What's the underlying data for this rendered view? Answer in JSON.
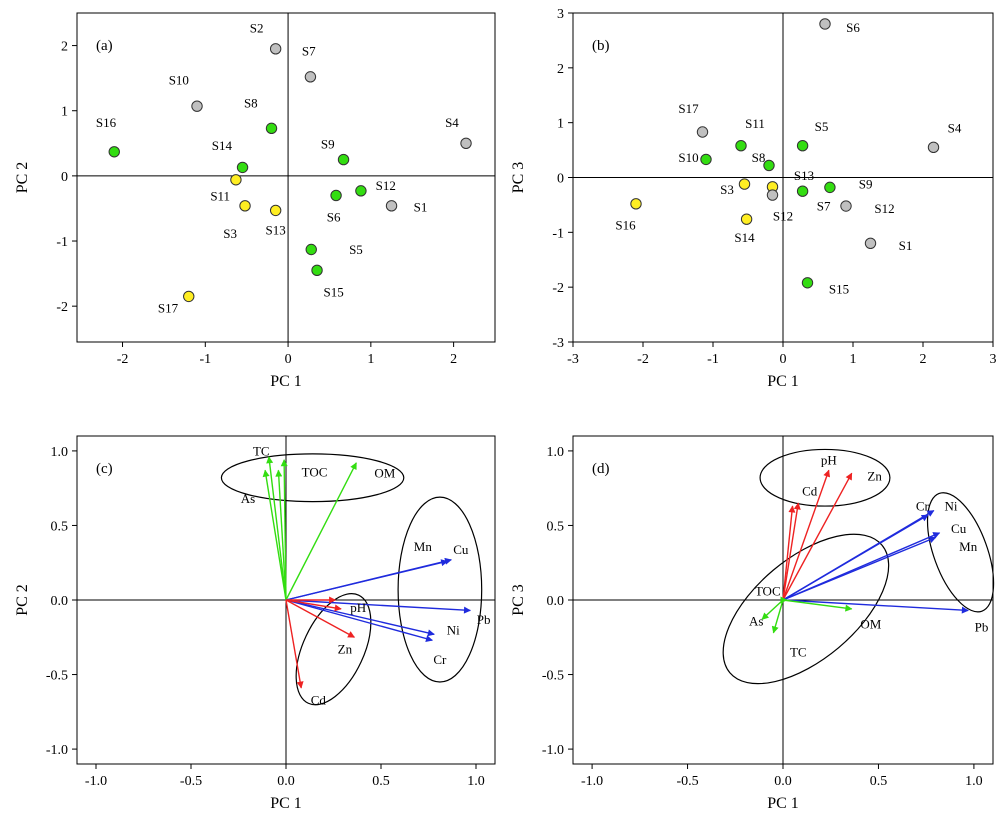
{
  "colors": {
    "grey": "#c0c0c0",
    "green": "#33dd11",
    "yellow": "#ffee22",
    "red": "#ee2222",
    "blue": "#1f2bdd"
  },
  "chart_data": [
    {
      "type": "scatter",
      "panel": "(a)",
      "xlabel": "PC 1",
      "ylabel": "PC 2",
      "xlim": [
        -2.55,
        2.5
      ],
      "ylim": [
        -2.55,
        2.5
      ],
      "xticks": [
        -2,
        -1,
        0,
        1,
        2
      ],
      "yticks": [
        -2,
        -1,
        0,
        1,
        2
      ],
      "points": [
        {
          "label": "S2",
          "x": -0.15,
          "y": 1.95,
          "color": "grey",
          "lx": -0.38,
          "ly": 2.2
        },
        {
          "label": "S7",
          "x": 0.27,
          "y": 1.52,
          "color": "grey",
          "lx": 0.25,
          "ly": 1.85
        },
        {
          "label": "S10",
          "x": -1.1,
          "y": 1.07,
          "color": "grey",
          "lx": -1.32,
          "ly": 1.4
        },
        {
          "label": "S8",
          "x": -0.2,
          "y": 0.73,
          "color": "green",
          "lx": -0.45,
          "ly": 1.05
        },
        {
          "label": "S4",
          "x": 2.15,
          "y": 0.5,
          "color": "grey",
          "lx": 1.98,
          "ly": 0.75
        },
        {
          "label": "S16",
          "x": -2.1,
          "y": 0.37,
          "color": "green",
          "lx": -2.2,
          "ly": 0.75
        },
        {
          "label": "S14",
          "x": -0.55,
          "y": 0.13,
          "color": "green",
          "lx": -0.8,
          "ly": 0.4
        },
        {
          "label": "S9",
          "x": 0.67,
          "y": 0.25,
          "color": "green",
          "lx": 0.48,
          "ly": 0.42
        },
        {
          "label": "S11",
          "x": -0.63,
          "y": -0.06,
          "color": "yellow",
          "lx": -0.82,
          "ly": -0.38
        },
        {
          "label": "S6",
          "x": 0.58,
          "y": -0.3,
          "color": "green",
          "lx": 0.55,
          "ly": -0.7
        },
        {
          "label": "S12",
          "x": 0.88,
          "y": -0.23,
          "color": "green",
          "lx": 1.18,
          "ly": -0.22
        },
        {
          "label": "S1",
          "x": 1.25,
          "y": -0.46,
          "color": "grey",
          "lx": 1.6,
          "ly": -0.55
        },
        {
          "label": "S3",
          "x": -0.52,
          "y": -0.46,
          "color": "yellow",
          "lx": -0.7,
          "ly": -0.95
        },
        {
          "label": "S13",
          "x": -0.15,
          "y": -0.53,
          "color": "yellow",
          "lx": -0.15,
          "ly": -0.9
        },
        {
          "label": "S5",
          "x": 0.28,
          "y": -1.13,
          "color": "green",
          "lx": 0.82,
          "ly": -1.2
        },
        {
          "label": "S15",
          "x": 0.35,
          "y": -1.45,
          "color": "green",
          "lx": 0.55,
          "ly": -1.85
        },
        {
          "label": "S17",
          "x": -1.2,
          "y": -1.85,
          "color": "yellow",
          "lx": -1.45,
          "ly": -2.1
        }
      ]
    },
    {
      "type": "scatter",
      "panel": "(b)",
      "xlabel": "PC 1",
      "ylabel": "PC 3",
      "xlim": [
        -3,
        3
      ],
      "ylim": [
        -3,
        3
      ],
      "xticks": [
        -3,
        -2,
        -1,
        0,
        1,
        2,
        3
      ],
      "yticks": [
        -3,
        -2,
        -1,
        0,
        1,
        2,
        3
      ],
      "points": [
        {
          "label": "S6",
          "x": 0.6,
          "y": 2.8,
          "color": "grey",
          "lx": 1.0,
          "ly": 2.65
        },
        {
          "label": "S17",
          "x": -1.15,
          "y": 0.83,
          "color": "grey",
          "lx": -1.35,
          "ly": 1.18
        },
        {
          "label": "S11",
          "x": -0.6,
          "y": 0.58,
          "color": "green",
          "lx": -0.4,
          "ly": 0.9
        },
        {
          "label": "S5",
          "x": 0.28,
          "y": 0.58,
          "color": "green",
          "lx": 0.55,
          "ly": 0.85
        },
        {
          "label": "S4",
          "x": 2.15,
          "y": 0.55,
          "color": "grey",
          "lx": 2.45,
          "ly": 0.82
        },
        {
          "label": "S10",
          "x": -1.1,
          "y": 0.33,
          "color": "green",
          "lx": -1.35,
          "ly": 0.28
        },
        {
          "label": "S8",
          "x": -0.2,
          "y": 0.22,
          "color": "green",
          "lx": -0.35,
          "ly": 0.28
        },
        {
          "label": "S13",
          "x": -0.15,
          "y": -0.17,
          "color": "yellow",
          "lx": 0.3,
          "ly": -0.05
        },
        {
          "label": "S3",
          "x": -0.55,
          "y": -0.12,
          "color": "yellow",
          "lx": -0.8,
          "ly": -0.3
        },
        {
          "label": "S12",
          "x": -0.15,
          "y": -0.32,
          "color": "grey",
          "lx": 0.0,
          "ly": -0.78
        },
        {
          "label": "S7",
          "x": 0.28,
          "y": -0.25,
          "color": "green",
          "lx": 0.58,
          "ly": -0.6
        },
        {
          "label": "S9",
          "x": 0.67,
          "y": -0.18,
          "color": "green",
          "lx": 1.18,
          "ly": -0.2
        },
        {
          "label": "S12",
          "x": 0.9,
          "y": -0.52,
          "color": "grey",
          "lx": 1.45,
          "ly": -0.65
        },
        {
          "label": "S16",
          "x": -2.1,
          "y": -0.48,
          "color": "yellow",
          "lx": -2.25,
          "ly": -0.95
        },
        {
          "label": "S14",
          "x": -0.52,
          "y": -0.76,
          "color": "yellow",
          "lx": -0.55,
          "ly": -1.18
        },
        {
          "label": "S1",
          "x": 1.25,
          "y": -1.2,
          "color": "grey",
          "lx": 1.75,
          "ly": -1.32
        },
        {
          "label": "S15",
          "x": 0.35,
          "y": -1.92,
          "color": "green",
          "lx": 0.8,
          "ly": -2.12
        }
      ]
    },
    {
      "type": "biplot",
      "panel": "(c)",
      "xlabel": "PC 1",
      "ylabel": "PC 2",
      "xlim": [
        -1.1,
        1.1
      ],
      "ylim": [
        -1.1,
        1.1
      ],
      "xticks": [
        -1.0,
        -0.5,
        0.0,
        0.5,
        1.0
      ],
      "yticks": [
        -1.0,
        -0.5,
        0.0,
        0.5,
        1.0
      ],
      "tick_labels": [
        "-1.0",
        "-0.5",
        "0.0",
        "0.5",
        "1.0"
      ],
      "vectors": [
        {
          "label": "TC",
          "x": -0.09,
          "y": 0.96,
          "color": "green",
          "lx": -0.13,
          "ly": 0.97
        },
        {
          "label": "As",
          "x": -0.11,
          "y": 0.87,
          "color": "green",
          "lx": -0.2,
          "ly": 0.65
        },
        {
          "label": "",
          "x": -0.04,
          "y": 0.87,
          "color": "green"
        },
        {
          "label": "TOC",
          "x": -0.01,
          "y": 0.94,
          "color": "green",
          "lx": 0.15,
          "ly": 0.83
        },
        {
          "label": "OM",
          "x": 0.37,
          "y": 0.92,
          "color": "green",
          "lx": 0.52,
          "ly": 0.82
        },
        {
          "label": "Mn",
          "x": 0.85,
          "y": 0.26,
          "color": "blue",
          "lx": 0.72,
          "ly": 0.33
        },
        {
          "label": "Cu",
          "x": 0.87,
          "y": 0.27,
          "color": "blue",
          "lx": 0.92,
          "ly": 0.31
        },
        {
          "label": "Pb",
          "x": 0.97,
          "y": -0.07,
          "color": "blue",
          "lx": 1.04,
          "ly": -0.16
        },
        {
          "label": "Ni",
          "x": 0.78,
          "y": -0.23,
          "color": "blue",
          "lx": 0.88,
          "ly": -0.23
        },
        {
          "label": "Cr",
          "x": 0.77,
          "y": -0.27,
          "color": "blue",
          "lx": 0.81,
          "ly": -0.43
        },
        {
          "label": "pH",
          "x": 0.29,
          "y": -0.06,
          "color": "red",
          "lx": 0.38,
          "ly": -0.08
        },
        {
          "label": "",
          "x": 0.26,
          "y": 0.0,
          "color": "red"
        },
        {
          "label": "Zn",
          "x": 0.36,
          "y": -0.25,
          "color": "red",
          "lx": 0.31,
          "ly": -0.36
        },
        {
          "label": "Cd",
          "x": 0.08,
          "y": -0.59,
          "color": "red",
          "lx": 0.17,
          "ly": -0.7
        }
      ],
      "ellipses": [
        {
          "cx": 0.14,
          "cy": 0.82,
          "rx": 0.48,
          "ry": 0.16,
          "rot": 0
        },
        {
          "cx": 0.81,
          "cy": 0.07,
          "rx": 0.22,
          "ry": 0.62,
          "rot": 0
        },
        {
          "cx": 0.25,
          "cy": -0.33,
          "rx": 0.16,
          "ry": 0.4,
          "rot": 25
        }
      ]
    },
    {
      "type": "biplot",
      "panel": "(d)",
      "xlabel": "PC 1",
      "ylabel": "PC 3",
      "xlim": [
        -1.1,
        1.1
      ],
      "ylim": [
        -1.1,
        1.1
      ],
      "xticks": [
        -1.0,
        -0.5,
        0.0,
        0.5,
        1.0
      ],
      "yticks": [
        -1.0,
        -0.5,
        0.0,
        0.5,
        1.0
      ],
      "tick_labels": [
        "-1.0",
        "-0.5",
        "0.0",
        "0.5",
        "1.0"
      ],
      "vectors": [
        {
          "label": "pH",
          "x": 0.24,
          "y": 0.87,
          "color": "red",
          "lx": 0.24,
          "ly": 0.91
        },
        {
          "label": "Zn",
          "x": 0.36,
          "y": 0.85,
          "color": "red",
          "lx": 0.48,
          "ly": 0.8
        },
        {
          "label": "Cd",
          "x": 0.08,
          "y": 0.65,
          "color": "red",
          "lx": 0.14,
          "ly": 0.7
        },
        {
          "label": "",
          "x": 0.05,
          "y": 0.63,
          "color": "red"
        },
        {
          "label": "Cr",
          "x": 0.76,
          "y": 0.57,
          "color": "blue",
          "lx": 0.73,
          "ly": 0.6
        },
        {
          "label": "Ni",
          "x": 0.79,
          "y": 0.6,
          "color": "blue",
          "lx": 0.88,
          "ly": 0.6
        },
        {
          "label": "Cu",
          "x": 0.82,
          "y": 0.45,
          "color": "blue",
          "lx": 0.92,
          "ly": 0.45
        },
        {
          "label": "Mn",
          "x": 0.8,
          "y": 0.42,
          "color": "blue",
          "lx": 0.97,
          "ly": 0.33
        },
        {
          "label": "Pb",
          "x": 0.97,
          "y": -0.07,
          "color": "blue",
          "lx": 1.04,
          "ly": -0.21
        },
        {
          "label": "OM",
          "x": 0.36,
          "y": -0.06,
          "color": "green",
          "lx": 0.46,
          "ly": -0.19
        },
        {
          "label": "TOC",
          "x": 0.02,
          "y": 0.0,
          "color": "green",
          "lx": -0.08,
          "ly": 0.03
        },
        {
          "label": "As",
          "x": -0.11,
          "y": -0.13,
          "color": "green",
          "lx": -0.14,
          "ly": -0.17
        },
        {
          "label": "TC",
          "x": -0.05,
          "y": -0.22,
          "color": "green",
          "lx": 0.08,
          "ly": -0.38
        }
      ],
      "ellipses": [
        {
          "cx": 0.22,
          "cy": 0.82,
          "rx": 0.34,
          "ry": 0.19,
          "rot": 0
        },
        {
          "cx": 0.93,
          "cy": 0.32,
          "rx": 0.14,
          "ry": 0.42,
          "rot": -20
        },
        {
          "cx": 0.12,
          "cy": -0.06,
          "rx": 0.52,
          "ry": 0.34,
          "rot": -40
        }
      ]
    }
  ]
}
